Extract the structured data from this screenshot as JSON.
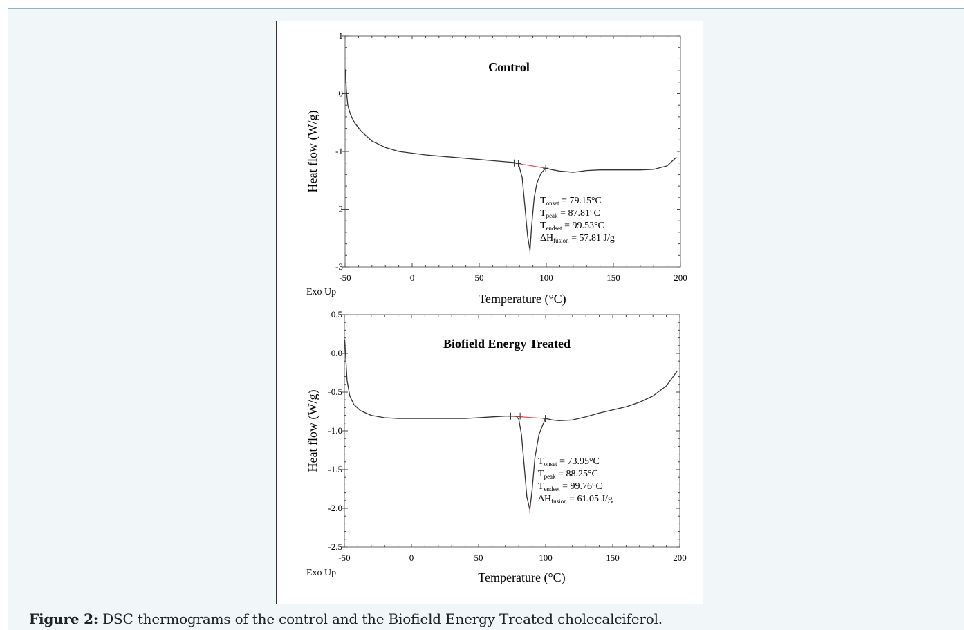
{
  "figure": {
    "caption_label": "Figure 2:",
    "caption_text": "DSC thermograms of the control and the Biofield Energy Treated cholecalciferol."
  },
  "chart_data": [
    {
      "type": "line",
      "title": "Control",
      "xlabel": "Temperature (°C)",
      "ylabel": "Heat flow (W/g)",
      "corner_label": "Exo Up",
      "xlim": [
        -50,
        200
      ],
      "ylim": [
        -3,
        1
      ],
      "xticks": [
        -50,
        0,
        50,
        100,
        150,
        200
      ],
      "yticks": [
        1,
        0,
        -1,
        -2,
        -3
      ],
      "ytick_labels": [
        "1",
        "0",
        "-1",
        "-2",
        "-3"
      ],
      "series": [
        {
          "x": [
            -49.8,
            -49,
            -48,
            -46,
            -43,
            -38,
            -30,
            -20,
            -10,
            0,
            10,
            20,
            30,
            40,
            50,
            60,
            70,
            76,
            79.15,
            82,
            84,
            86,
            87.81,
            89,
            91,
            93,
            96,
            99.53,
            105,
            110,
            115,
            120,
            130,
            140,
            150,
            160,
            170,
            180,
            190,
            197
          ],
          "y": [
            0.42,
            0.05,
            -0.2,
            -0.36,
            -0.5,
            -0.65,
            -0.82,
            -0.93,
            -1.0,
            -1.03,
            -1.06,
            -1.08,
            -1.1,
            -1.12,
            -1.14,
            -1.16,
            -1.18,
            -1.19,
            -1.21,
            -1.45,
            -1.95,
            -2.45,
            -2.72,
            -2.3,
            -1.8,
            -1.55,
            -1.38,
            -1.29,
            -1.32,
            -1.34,
            -1.35,
            -1.36,
            -1.33,
            -1.32,
            -1.32,
            -1.32,
            -1.32,
            -1.31,
            -1.25,
            -1.1
          ]
        }
      ],
      "baseline": {
        "x": [
          79.15,
          99.53
        ],
        "y": [
          -1.21,
          -1.29
        ]
      },
      "markers": [
        {
          "x": 76,
          "y": -1.2
        },
        {
          "x": 79.15,
          "y": -1.21
        },
        {
          "x": 99.53,
          "y": -1.29
        }
      ],
      "annotations": [
        {
          "label": "T",
          "sub": "onset",
          "value": " = 79.15°C"
        },
        {
          "label": "T",
          "sub": "peak",
          "value": " = 87.81°C"
        },
        {
          "label": "T",
          "sub": "endset",
          "value": " = 99.53°C"
        },
        {
          "label": "ΔH",
          "sub": "fusion",
          "value": " = 57.81 J/g"
        }
      ]
    },
    {
      "type": "line",
      "title": "Biofield Energy Treated",
      "xlabel": "Temperature (°C)",
      "ylabel": "Heat flow (W/g)",
      "corner_label": "Exo Up",
      "xlim": [
        -50,
        200
      ],
      "ylim": [
        -2.5,
        0.5
      ],
      "xticks": [
        -50,
        0,
        50,
        100,
        150,
        200
      ],
      "yticks": [
        0.5,
        0.0,
        -0.5,
        -1.0,
        -1.5,
        -2.0,
        -2.5
      ],
      "ytick_labels": [
        "0.5",
        "0.0",
        "-0.5",
        "-1.0",
        "-1.5",
        "-2.0",
        "-2.5"
      ],
      "series": [
        {
          "x": [
            -49.8,
            -49,
            -48,
            -46,
            -43,
            -38,
            -30,
            -20,
            -10,
            0,
            10,
            20,
            30,
            40,
            50,
            60,
            70,
            73.95,
            78,
            80,
            82,
            84,
            86,
            88.25,
            90,
            92,
            95,
            99.76,
            105,
            110,
            120,
            130,
            140,
            150,
            160,
            170,
            180,
            190,
            198
          ],
          "y": [
            0.18,
            -0.05,
            -0.35,
            -0.55,
            -0.66,
            -0.74,
            -0.8,
            -0.83,
            -0.84,
            -0.84,
            -0.84,
            -0.84,
            -0.84,
            -0.84,
            -0.83,
            -0.82,
            -0.81,
            -0.81,
            -0.81,
            -0.85,
            -1.05,
            -1.45,
            -1.85,
            -2.02,
            -1.75,
            -1.35,
            -1.05,
            -0.84,
            -0.86,
            -0.87,
            -0.86,
            -0.82,
            -0.77,
            -0.73,
            -0.69,
            -0.63,
            -0.55,
            -0.42,
            -0.23
          ]
        }
      ],
      "baseline": {
        "x": [
          73.95,
          99.76
        ],
        "y": [
          -0.81,
          -0.84
        ]
      },
      "markers": [
        {
          "x": 73.95,
          "y": -0.81
        },
        {
          "x": 81,
          "y": -0.81
        },
        {
          "x": 99.76,
          "y": -0.84
        }
      ],
      "annotations": [
        {
          "label": "T",
          "sub": "onset",
          "value": " = 73.95°C"
        },
        {
          "label": "T",
          "sub": "peak",
          "value": " = 88.25°C"
        },
        {
          "label": "T",
          "sub": "endset",
          "value": " = 99.76°C"
        },
        {
          "label": "ΔH",
          "sub": "fusion",
          "value": " = 61.05 J/g"
        }
      ]
    }
  ]
}
